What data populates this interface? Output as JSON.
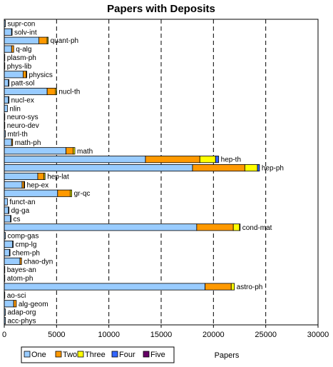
{
  "chart_data": {
    "type": "bar",
    "orientation": "horizontal",
    "stacked": true,
    "title": "Papers with Deposits",
    "xlabel": "Papers",
    "ylabel": "",
    "xlim": [
      0,
      30000
    ],
    "xticks": [
      "0",
      "5000",
      "10000",
      "15000",
      "20000",
      "25000",
      "30000"
    ],
    "grid": "vertical-dashed",
    "legend_position": "bottom",
    "categories": [
      "supr-con",
      "solv-int",
      "quant-ph",
      "q-alg",
      "plasm-ph",
      "phys-lib",
      "physics",
      "patt-sol",
      "nucl-th",
      "nucl-ex",
      "nlin",
      "neuro-sys",
      "neuro-dev",
      "mtrl-th",
      "math-ph",
      "math",
      "hep-th",
      "hep-ph",
      "hep-lat",
      "hep-ex",
      "gr-qc",
      "funct-an",
      "dg-ga",
      "cs",
      "cond-mat",
      "comp-gas",
      "cmp-lg",
      "chem-ph",
      "chao-dyn",
      "bayes-an",
      "atom-ph",
      "astro-ph",
      "ao-sci",
      "alg-geom",
      "adap-org",
      "acc-phys"
    ],
    "series": [
      {
        "name": "One",
        "color": "#99ccff",
        "values": [
          100,
          700,
          3300,
          700,
          50,
          50,
          1800,
          400,
          4100,
          400,
          300,
          50,
          50,
          100,
          700,
          5900,
          13500,
          18000,
          3200,
          1700,
          5100,
          300,
          400,
          600,
          18400,
          100,
          800,
          500,
          1500,
          50,
          50,
          19200,
          50,
          900,
          100,
          100
        ]
      },
      {
        "name": "Two",
        "color": "#ff9900",
        "values": [
          0,
          50,
          800,
          200,
          0,
          0,
          300,
          50,
          800,
          50,
          0,
          0,
          0,
          0,
          100,
          700,
          5200,
          5000,
          600,
          200,
          1200,
          0,
          50,
          50,
          3500,
          0,
          50,
          50,
          150,
          0,
          0,
          2500,
          0,
          250,
          0,
          0
        ]
      },
      {
        "name": "Three",
        "color": "#ffff00",
        "values": [
          0,
          0,
          100,
          0,
          0,
          0,
          50,
          0,
          100,
          0,
          0,
          0,
          0,
          0,
          0,
          150,
          1500,
          1200,
          100,
          50,
          150,
          0,
          0,
          0,
          600,
          0,
          0,
          0,
          0,
          0,
          0,
          300,
          0,
          0,
          0,
          0
        ]
      },
      {
        "name": "Four",
        "color": "#3366ff",
        "values": [
          0,
          0,
          0,
          0,
          0,
          0,
          0,
          0,
          0,
          0,
          0,
          0,
          0,
          0,
          0,
          0,
          300,
          200,
          0,
          0,
          0,
          0,
          0,
          0,
          50,
          0,
          0,
          0,
          0,
          0,
          0,
          0,
          0,
          0,
          0,
          0
        ]
      },
      {
        "name": "Five",
        "color": "#660066",
        "values": [
          0,
          0,
          0,
          0,
          0,
          0,
          0,
          0,
          0,
          0,
          0,
          0,
          0,
          0,
          0,
          0,
          0,
          0,
          0,
          0,
          0,
          0,
          0,
          0,
          0,
          0,
          0,
          0,
          0,
          0,
          0,
          0,
          0,
          0,
          0,
          0
        ]
      }
    ]
  }
}
